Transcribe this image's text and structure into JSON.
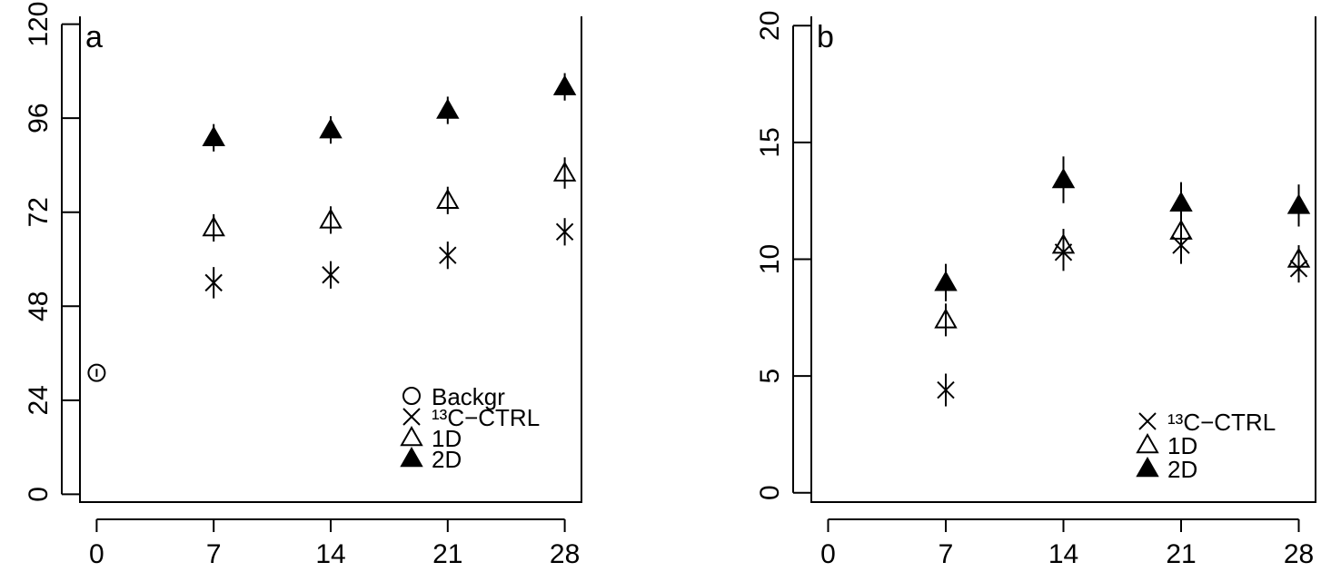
{
  "chart_data": [
    {
      "type": "scatter",
      "panel_label": "a",
      "x_ticks": [
        0,
        7,
        14,
        21,
        28
      ],
      "y_ticks": [
        0,
        24,
        48,
        72,
        96,
        120
      ],
      "xlim": [
        -1,
        29
      ],
      "ylim": [
        -2,
        122
      ],
      "grid": false,
      "legend_position": "bottom-right",
      "series": [
        {
          "name": "Backgr",
          "marker": "circle-open",
          "points": [
            {
              "x": 0,
              "y": 31,
              "err": 1
            }
          ]
        },
        {
          "name": "¹³C−CTRL",
          "marker": "x",
          "points": [
            {
              "x": 7,
              "y": 54,
              "err": 4
            },
            {
              "x": 14,
              "y": 56,
              "err": 3.5
            },
            {
              "x": 21,
              "y": 61,
              "err": 3.5
            },
            {
              "x": 28,
              "y": 67,
              "err": 3.5
            }
          ]
        },
        {
          "name": "1D",
          "marker": "triangle-open",
          "points": [
            {
              "x": 7,
              "y": 68,
              "err": 3.5
            },
            {
              "x": 14,
              "y": 70,
              "err": 3.5
            },
            {
              "x": 21,
              "y": 75,
              "err": 3.5
            },
            {
              "x": 28,
              "y": 82,
              "err": 4
            }
          ]
        },
        {
          "name": "2D",
          "marker": "triangle-filled",
          "points": [
            {
              "x": 7,
              "y": 91,
              "err": 3.5
            },
            {
              "x": 14,
              "y": 93,
              "err": 3.5
            },
            {
              "x": 21,
              "y": 98,
              "err": 3.5
            },
            {
              "x": 28,
              "y": 104,
              "err": 3.5
            }
          ]
        }
      ]
    },
    {
      "type": "scatter",
      "panel_label": "b",
      "x_ticks": [
        0,
        7,
        14,
        21,
        28
      ],
      "y_ticks": [
        0,
        5,
        10,
        15,
        20
      ],
      "xlim": [
        -1,
        29
      ],
      "ylim": [
        -0.4,
        20.4
      ],
      "grid": false,
      "legend_position": "bottom-right",
      "series": [
        {
          "name": "¹³C−CTRL",
          "marker": "x",
          "points": [
            {
              "x": 7,
              "y": 4.4,
              "err": 0.7
            },
            {
              "x": 14,
              "y": 10.3,
              "err": 0.8
            },
            {
              "x": 21,
              "y": 10.6,
              "err": 0.8
            },
            {
              "x": 28,
              "y": 9.6,
              "err": 0.6
            }
          ]
        },
        {
          "name": "1D",
          "marker": "triangle-open",
          "points": [
            {
              "x": 7,
              "y": 7.4,
              "err": 0.7
            },
            {
              "x": 14,
              "y": 10.6,
              "err": 0.7
            },
            {
              "x": 21,
              "y": 11.2,
              "err": 0.7
            },
            {
              "x": 28,
              "y": 10.0,
              "err": 0.6
            }
          ]
        },
        {
          "name": "2D",
          "marker": "triangle-filled",
          "points": [
            {
              "x": 7,
              "y": 9.0,
              "err": 0.8
            },
            {
              "x": 14,
              "y": 13.4,
              "err": 1.0
            },
            {
              "x": 21,
              "y": 12.4,
              "err": 0.9
            },
            {
              "x": 28,
              "y": 12.3,
              "err": 0.9
            }
          ]
        }
      ]
    }
  ]
}
